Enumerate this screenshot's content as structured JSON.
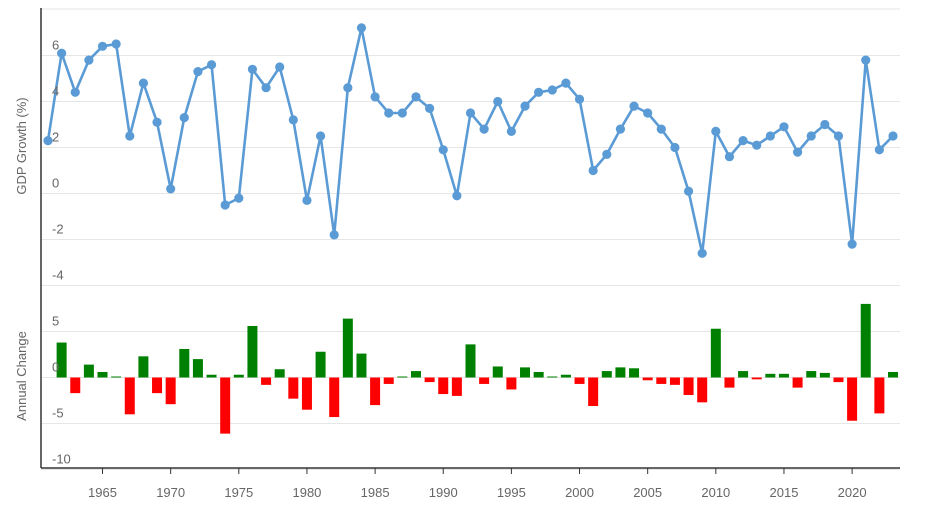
{
  "chart_data": {
    "type": "line+bar",
    "x": [
      1961,
      1962,
      1963,
      1964,
      1965,
      1966,
      1967,
      1968,
      1969,
      1970,
      1971,
      1972,
      1973,
      1974,
      1975,
      1976,
      1977,
      1978,
      1979,
      1980,
      1981,
      1982,
      1983,
      1984,
      1985,
      1986,
      1987,
      1988,
      1989,
      1990,
      1991,
      1992,
      1993,
      1994,
      1995,
      1996,
      1997,
      1998,
      1999,
      2000,
      2001,
      2002,
      2003,
      2004,
      2005,
      2006,
      2007,
      2008,
      2009,
      2010,
      2011,
      2012,
      2013,
      2014,
      2015,
      2016,
      2017,
      2018,
      2019,
      2020,
      2021,
      2022,
      2023
    ],
    "x_ticks": [
      1965,
      1970,
      1975,
      1980,
      1985,
      1990,
      1995,
      2000,
      2005,
      2010,
      2015,
      2020
    ],
    "gdp_panel": {
      "ylabel": "GDP Growth (%)",
      "ylim": [
        -4,
        8
      ],
      "y_ticks": [
        -4,
        -2,
        0,
        2,
        4,
        6
      ],
      "color": "#5b9bd5",
      "values": [
        2.3,
        6.1,
        4.4,
        5.8,
        6.4,
        6.5,
        2.5,
        4.8,
        3.1,
        0.2,
        3.3,
        5.3,
        5.6,
        -0.5,
        -0.2,
        5.4,
        4.6,
        5.5,
        3.2,
        -0.3,
        2.5,
        -1.8,
        4.6,
        7.2,
        4.2,
        3.5,
        3.5,
        4.2,
        3.7,
        1.9,
        -0.1,
        3.5,
        2.8,
        4.0,
        2.7,
        3.8,
        4.4,
        4.5,
        4.8,
        4.1,
        1.0,
        1.7,
        2.8,
        3.8,
        3.5,
        2.8,
        2.0,
        0.1,
        -2.6,
        2.7,
        1.6,
        2.3,
        2.1,
        2.5,
        2.9,
        1.8,
        2.5,
        3.0,
        2.5,
        -2.2,
        5.8,
        1.9,
        2.5
      ]
    },
    "change_panel": {
      "ylabel": "Annual Change",
      "ylim": [
        -10,
        10
      ],
      "y_ticks": [
        -10,
        -5,
        0,
        5
      ],
      "positive_color": "#008000",
      "negative_color": "#ff0000",
      "values": [
        null,
        3.8,
        -1.7,
        1.4,
        0.6,
        0.1,
        -4.0,
        2.3,
        -1.7,
        -2.9,
        3.1,
        2.0,
        0.3,
        -6.1,
        0.3,
        5.6,
        -0.8,
        0.9,
        -2.3,
        -3.5,
        2.8,
        -4.3,
        6.4,
        2.6,
        -3.0,
        -0.7,
        0.0,
        0.7,
        -0.5,
        -1.8,
        -2.0,
        3.6,
        -0.7,
        1.2,
        -1.3,
        1.1,
        0.6,
        0.1,
        0.3,
        -0.7,
        -3.1,
        0.7,
        1.1,
        1.0,
        -0.3,
        -0.7,
        -0.8,
        -1.9,
        -2.7,
        5.3,
        -1.1,
        0.7,
        -0.2,
        0.4,
        0.4,
        -1.1,
        0.7,
        0.5,
        -0.5,
        -4.7,
        8.0,
        -3.9,
        0.6
      ]
    }
  }
}
